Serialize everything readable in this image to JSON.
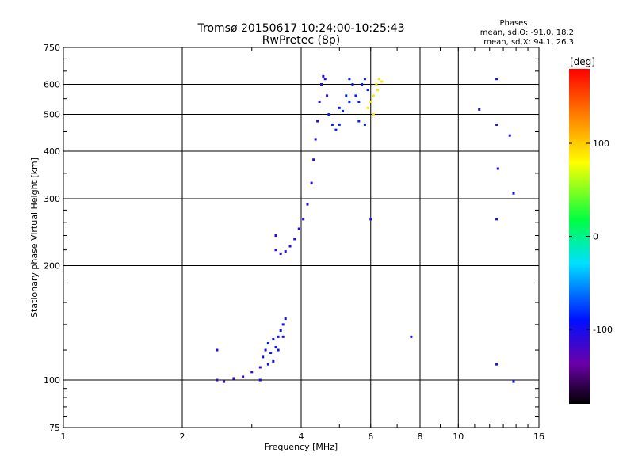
{
  "chart_data": {
    "type": "scatter",
    "title": "Tromsø 20150617 10:24:00-10:25:43",
    "subtitle": "RwPretec (8p)",
    "xlabel": "Frequency [MHz]",
    "ylabel": "Stationary phase Virtual Height [km]",
    "x_scale": "log",
    "y_scale": "log",
    "xlim": [
      1,
      16
    ],
    "ylim": [
      75,
      750
    ],
    "x_ticks": [
      1,
      2,
      4,
      6,
      8,
      10,
      16
    ],
    "y_ticks": [
      75,
      100,
      200,
      300,
      400,
      500,
      600,
      750
    ],
    "grid": true,
    "phase_info": {
      "title": "Phases",
      "line_o": "mean, sd,O: -91.0, 18.2",
      "line_x": "mean, sd,X:  94.1, 26.3"
    },
    "colorbar": {
      "label": "[deg]",
      "range": [
        -180,
        180
      ],
      "ticks": [
        100,
        0,
        -100
      ],
      "tick_labels": [
        "100",
        "0",
        "-100"
      ],
      "colormap": "rainbow"
    },
    "traces": [
      {
        "name_hint": "E",
        "color_deg": -115,
        "points": [
          [
            2.45,
            100
          ],
          [
            2.55,
            99
          ],
          [
            2.7,
            101
          ],
          [
            2.85,
            102
          ],
          [
            3.0,
            105
          ],
          [
            3.15,
            108
          ]
        ]
      },
      {
        "name_hint": "E-spread",
        "color_deg": -95,
        "points": [
          [
            3.2,
            115
          ],
          [
            3.25,
            120
          ],
          [
            3.3,
            125
          ],
          [
            3.35,
            118
          ],
          [
            3.3,
            110
          ],
          [
            3.4,
            112
          ],
          [
            3.45,
            122
          ],
          [
            3.5,
            130
          ],
          [
            3.55,
            135
          ],
          [
            3.6,
            140
          ],
          [
            3.65,
            145
          ],
          [
            3.5,
            120
          ],
          [
            3.4,
            128
          ],
          [
            3.6,
            130
          ]
        ]
      },
      {
        "name_hint": "F-low",
        "color_deg": -105,
        "points": [
          [
            3.45,
            240
          ],
          [
            3.45,
            220
          ],
          [
            3.55,
            215
          ],
          [
            3.65,
            218
          ],
          [
            3.75,
            225
          ],
          [
            3.85,
            235
          ],
          [
            3.95,
            250
          ],
          [
            4.05,
            265
          ],
          [
            4.15,
            290
          ],
          [
            4.25,
            330
          ],
          [
            4.3,
            380
          ],
          [
            4.35,
            430
          ],
          [
            4.4,
            480
          ],
          [
            4.45,
            540
          ],
          [
            4.5,
            600
          ],
          [
            4.55,
            630
          ],
          [
            4.6,
            620
          ],
          [
            4.65,
            560
          ]
        ]
      },
      {
        "name_hint": "F-o",
        "color_deg": -85,
        "points": [
          [
            4.7,
            500
          ],
          [
            4.8,
            470
          ],
          [
            4.9,
            455
          ],
          [
            5.0,
            470
          ],
          [
            5.1,
            510
          ],
          [
            5.2,
            560
          ],
          [
            5.3,
            620
          ],
          [
            5.4,
            600
          ],
          [
            5.5,
            560
          ],
          [
            5.6,
            540
          ],
          [
            5.7,
            600
          ],
          [
            5.8,
            620
          ],
          [
            5.9,
            580
          ],
          [
            5.3,
            540
          ],
          [
            5.0,
            520
          ],
          [
            5.6,
            480
          ],
          [
            5.8,
            470
          ]
        ]
      },
      {
        "name_hint": "F-x",
        "color_deg": 90,
        "points": [
          [
            5.9,
            520
          ],
          [
            6.0,
            540
          ],
          [
            6.1,
            560
          ],
          [
            6.2,
            600
          ],
          [
            6.3,
            620
          ],
          [
            6.25,
            580
          ],
          [
            6.4,
            610
          ],
          [
            6.1,
            500
          ]
        ]
      },
      {
        "name_hint": "noise",
        "color_deg": -100,
        "points": [
          [
            12.5,
            620
          ],
          [
            11.3,
            515
          ],
          [
            12.5,
            470
          ],
          [
            12.5,
            265
          ],
          [
            12.5,
            110
          ],
          [
            12.6,
            360
          ],
          [
            13.5,
            440
          ],
          [
            13.8,
            310
          ],
          [
            7.6,
            130
          ],
          [
            13.8,
            99
          ],
          [
            6.0,
            265
          ],
          [
            2.45,
            120
          ],
          [
            3.15,
            100
          ]
        ]
      }
    ]
  }
}
